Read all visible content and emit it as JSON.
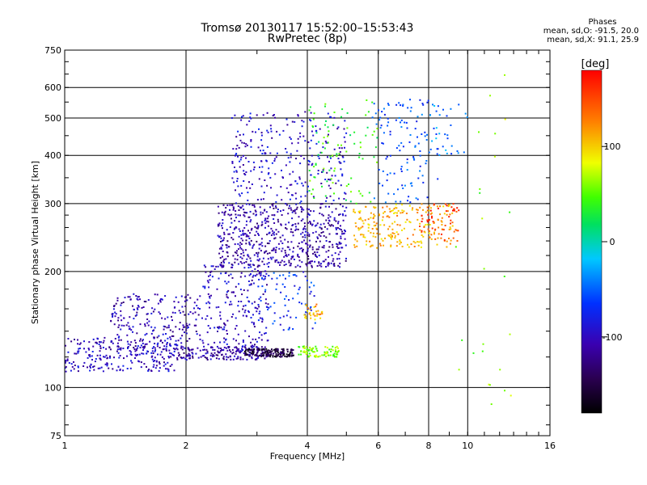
{
  "title": {
    "line1": "Tromsø 20130117 15:52:00–15:53:43",
    "line2": "RwPretec (8p)"
  },
  "phases": {
    "header": "Phases",
    "line_o": "mean, sd,O: -91.5, 20.0",
    "line_x": "mean, sd,X:  91.1, 25.9"
  },
  "colorbar": {
    "label": "[deg]",
    "ticks": [
      100,
      0,
      -100
    ],
    "range": [
      -180,
      180
    ],
    "colormap": "rainbow (black → purple → blue → cyan → green → yellow → orange → red)"
  },
  "chart_data": {
    "type": "scatter",
    "title": "Tromsø 20130117 15:52:00–15:53:43",
    "subtitle": "RwPretec (8p)",
    "xlabel": "Frequency [MHz]",
    "ylabel": "Stationary phase Virtual Height [km]",
    "x_scale": "log",
    "y_scale": "log",
    "xlim": [
      1,
      16
    ],
    "ylim": [
      75,
      750
    ],
    "x_ticks": [
      1,
      2,
      4,
      6,
      8,
      10,
      16
    ],
    "y_ticks": [
      75,
      100,
      200,
      300,
      400,
      500,
      600,
      750
    ],
    "grid": true,
    "color_by": "phase [deg]",
    "clusters": [
      {
        "x_range": [
          1.0,
          1.9
        ],
        "y_range": [
          110,
          135
        ],
        "phase": -100,
        "n": 260
      },
      {
        "x_range": [
          1.3,
          2.2
        ],
        "y_range": [
          125,
          175
        ],
        "phase": -105,
        "n": 220
      },
      {
        "x_range": [
          1.9,
          3.2
        ],
        "y_range": [
          118,
          128
        ],
        "phase": -110,
        "n": 180
      },
      {
        "x_range": [
          2.2,
          3.2
        ],
        "y_range": [
          125,
          210
        ],
        "phase": -100,
        "n": 220
      },
      {
        "x_range": [
          2.8,
          3.7
        ],
        "y_range": [
          120,
          126
        ],
        "phase": -150,
        "n": 150
      },
      {
        "x_range": [
          2.4,
          5.0
        ],
        "y_range": [
          205,
          300
        ],
        "phase": -110,
        "n": 600
      },
      {
        "x_range": [
          2.6,
          5.0
        ],
        "y_range": [
          300,
          520
        ],
        "phase": -95,
        "n": 280
      },
      {
        "x_range": [
          3.0,
          4.2
        ],
        "y_range": [
          140,
          200
        ],
        "phase": -70,
        "n": 80
      },
      {
        "x_range": [
          3.8,
          4.8
        ],
        "y_range": [
          120,
          128
        ],
        "phase": 60,
        "n": 90
      },
      {
        "x_range": [
          3.9,
          4.4
        ],
        "y_range": [
          150,
          165
        ],
        "phase": 110,
        "n": 30
      },
      {
        "x_range": [
          4.0,
          6.0
        ],
        "y_range": [
          300,
          560
        ],
        "phase": 40,
        "n": 90
      },
      {
        "x_range": [
          5.2,
          9.2
        ],
        "y_range": [
          230,
          300
        ],
        "phase": 110,
        "n": 220
      },
      {
        "x_range": [
          5.8,
          8.5
        ],
        "y_range": [
          300,
          560
        ],
        "phase": -60,
        "n": 120
      },
      {
        "x_range": [
          7.6,
          9.5
        ],
        "y_range": [
          240,
          300
        ],
        "phase": 150,
        "n": 60
      },
      {
        "x_range": [
          8.0,
          10.0
        ],
        "y_range": [
          400,
          550
        ],
        "phase": -40,
        "n": 30
      },
      {
        "x_range": [
          9.2,
          12.8
        ],
        "y_range": [
          90,
          650
        ],
        "phase": 60,
        "n": 25
      }
    ]
  }
}
